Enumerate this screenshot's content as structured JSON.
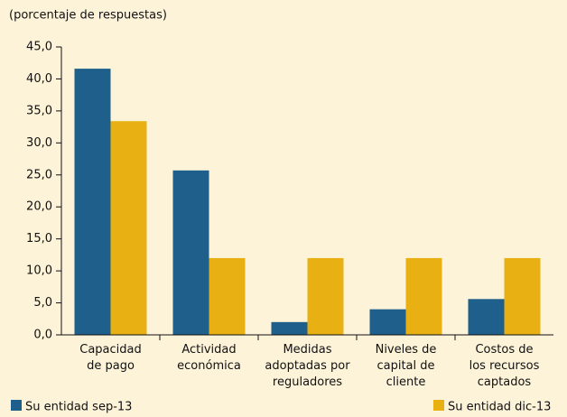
{
  "chart_data": {
    "type": "bar",
    "y_label": "(porcentaje de respuestas)",
    "categories": [
      "Capacidad\nde pago",
      "Actividad\neconómica",
      "Medidas\nadoptadas por\nreguladores",
      "Niveles de\ncapital de\ncliente",
      "Costos de\nlos recursos\ncaptados"
    ],
    "series": [
      {
        "name": "Su entidad sep-13",
        "color": "#1f5f8b",
        "values": [
          41.6,
          25.7,
          2.0,
          4.0,
          5.6
        ]
      },
      {
        "name": "Su entidad dic-13",
        "color": "#e8b012",
        "values": [
          33.4,
          12.0,
          12.0,
          12.0,
          12.0
        ]
      }
    ],
    "ylim": [
      0,
      45
    ],
    "yticks": [
      {
        "value": 0,
        "label": "0,0"
      },
      {
        "value": 5,
        "label": "5,0"
      },
      {
        "value": 10,
        "label": "10,0"
      },
      {
        "value": 15,
        "label": "15,0"
      },
      {
        "value": 20,
        "label": "20,0"
      },
      {
        "value": 25,
        "label": "25,0"
      },
      {
        "value": 30,
        "label": "30,0"
      },
      {
        "value": 35,
        "label": "35,0"
      },
      {
        "value": 40,
        "label": "40,0"
      },
      {
        "value": 45,
        "label": "45,0"
      }
    ],
    "grid": false,
    "legend": "bottom"
  }
}
